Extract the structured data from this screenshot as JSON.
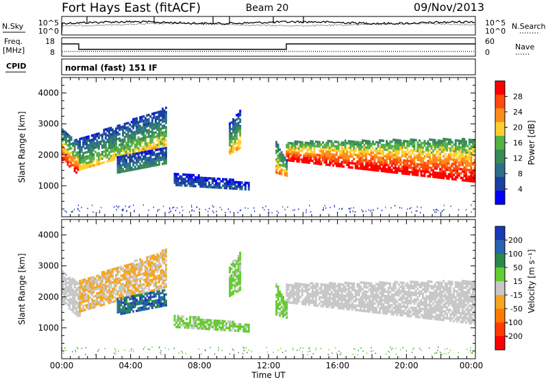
{
  "header": {
    "station": "Fort Hays East (fitACF)",
    "beam": "Beam 20",
    "date": "09/Nov/2013"
  },
  "noise_panel": {
    "left_label": "N.Sky",
    "right_label": "N.Search",
    "left_ticks": [
      "10^5",
      "10^0"
    ],
    "right_ticks": [
      "10^5",
      "10^0"
    ]
  },
  "freq_panel": {
    "left_label_1": "Freq.",
    "left_label_2": "[MHz]",
    "right_label": "Nave",
    "left_ticks": [
      "18",
      "8"
    ],
    "right_ticks": [
      "60",
      "0"
    ]
  },
  "cpid": {
    "label": "CPID",
    "value": "normal (fast) 151 IF"
  },
  "colors": {
    "power": [
      "#0000ff",
      "#1b3fa6",
      "#2f6e8a",
      "#3a8a5a",
      "#58b048",
      "#ffcf2f",
      "#ff8c1a",
      "#ff4a10",
      "#ff0000"
    ],
    "velocity": [
      "#1a3ab8",
      "#2b64b0",
      "#2a8a48",
      "#66cc33",
      "#c8c8c8",
      "#f5a623",
      "#ff7a00",
      "#ff3b00",
      "#ff0000"
    ]
  },
  "chart_data": [
    {
      "type": "heatmap",
      "name": "power",
      "ylabel": "Slant Range [km]",
      "yticks": [
        "1000",
        "2000",
        "3000",
        "4000"
      ],
      "ylim": [
        0,
        4500
      ],
      "xlim": [
        0,
        24
      ],
      "colorbar_label": "Power [dB]",
      "colorbar_ticks": [
        "4",
        "8",
        "12",
        "16",
        "20",
        "24",
        "28"
      ],
      "colorbar_range": [
        0,
        32
      ],
      "bands": [
        {
          "x0": 0.0,
          "x1": 1.0,
          "lo": [
            1800,
            1300
          ],
          "hi": [
            2800,
            2400
          ],
          "vmin": 6,
          "vmax": 30
        },
        {
          "x0": 1.0,
          "x1": 6.0,
          "lo": [
            1500,
            2300
          ],
          "hi": [
            2500,
            3500
          ],
          "vmin": 4,
          "vmax": 20
        },
        {
          "x0": 3.2,
          "x1": 6.0,
          "lo": [
            1400,
            1700
          ],
          "hi": [
            1900,
            2200
          ],
          "vmin": 4,
          "vmax": 12
        },
        {
          "x0": 6.5,
          "x1": 10.8,
          "lo": [
            1000,
            850
          ],
          "hi": [
            1400,
            1100
          ],
          "vmin": 2,
          "vmax": 8
        },
        {
          "x0": 9.7,
          "x1": 10.3,
          "lo": [
            2000,
            2200
          ],
          "hi": [
            3000,
            3400
          ],
          "vmin": 4,
          "vmax": 22
        },
        {
          "x0": 12.4,
          "x1": 13.0,
          "lo": [
            1400,
            1300
          ],
          "hi": [
            2400,
            1800
          ],
          "vmin": 8,
          "vmax": 24
        },
        {
          "x0": 13.0,
          "x1": 24.0,
          "lo": [
            1800,
            1100
          ],
          "hi": [
            2400,
            2500
          ],
          "vmin": 12,
          "vmax": 32
        }
      ]
    },
    {
      "type": "heatmap",
      "name": "velocity",
      "ylabel": "Slant Range [km]",
      "yticks": [
        "1000",
        "2000",
        "3000",
        "4000"
      ],
      "ylim": [
        0,
        4500
      ],
      "xlim": [
        0,
        24
      ],
      "xlabel": "Time UT",
      "xticks": [
        "00:00",
        "04:00",
        "08:00",
        "12:00",
        "16:00",
        "20:00",
        "00:00"
      ],
      "colorbar_label": "Velocity [m s⁻¹]",
      "colorbar_ticks": [
        "200",
        "100",
        "50",
        "15",
        "-15",
        "-50",
        "-100",
        "-200"
      ],
      "colorbar_range": [
        -250,
        250
      ],
      "bands": [
        {
          "x0": 0.0,
          "x1": 1.0,
          "lo": [
            1800,
            1300
          ],
          "hi": [
            2800,
            2400
          ],
          "vmin": -10,
          "vmax": 10
        },
        {
          "x0": 1.0,
          "x1": 6.0,
          "lo": [
            1500,
            2300
          ],
          "hi": [
            2500,
            3500
          ],
          "vmin": -80,
          "vmax": 10
        },
        {
          "x0": 3.2,
          "x1": 6.0,
          "lo": [
            1400,
            1700
          ],
          "hi": [
            1900,
            2200
          ],
          "vmin": 100,
          "vmax": 220
        },
        {
          "x0": 6.5,
          "x1": 10.8,
          "lo": [
            1000,
            850
          ],
          "hi": [
            1400,
            1100
          ],
          "vmin": 15,
          "vmax": 60
        },
        {
          "x0": 9.7,
          "x1": 10.3,
          "lo": [
            2000,
            2200
          ],
          "hi": [
            3000,
            3400
          ],
          "vmin": 20,
          "vmax": 60
        },
        {
          "x0": 12.4,
          "x1": 13.0,
          "lo": [
            1400,
            1300
          ],
          "hi": [
            2400,
            1800
          ],
          "vmin": 20,
          "vmax": 50
        },
        {
          "x0": 13.0,
          "x1": 24.0,
          "lo": [
            1800,
            1100
          ],
          "hi": [
            2400,
            2500
          ],
          "vmin": -14,
          "vmax": 14
        }
      ]
    }
  ]
}
